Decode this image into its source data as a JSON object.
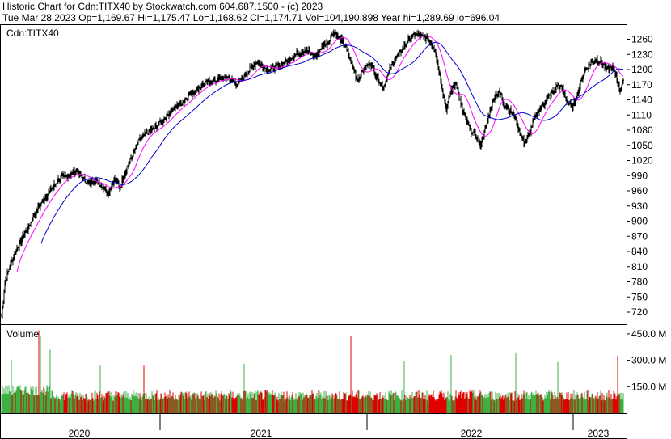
{
  "header": {
    "line1": "Historic Chart for Cdn:TITX40 by Stockwatch.com 604.687.1500 - (c) 2023",
    "line2": "Tue Mar 28 2023   Op=1,169.67   Hi=1,175.47   Lo=1,168.62   Cl=1,174.71   Vol=104,190,898   Year hi=1,289.69   lo=696.04"
  },
  "chart_data": [
    {
      "type": "line",
      "subtype": "ohlc",
      "title": "Cdn:TITX40",
      "x_labels": [
        "2020",
        "2021",
        "2022",
        "2023"
      ],
      "y_ticks": [
        720,
        750,
        780,
        810,
        840,
        870,
        900,
        930,
        960,
        990,
        1020,
        1050,
        1080,
        1110,
        1140,
        1170,
        1200,
        1230,
        1260
      ],
      "ylim": [
        696,
        1288
      ],
      "grid": false,
      "anchors": [
        [
          0,
          710
        ],
        [
          4,
          780
        ],
        [
          12,
          820
        ],
        [
          20,
          850
        ],
        [
          30,
          880
        ],
        [
          40,
          910
        ],
        [
          50,
          940
        ],
        [
          60,
          960
        ],
        [
          72,
          985
        ],
        [
          84,
          990
        ],
        [
          92,
          1000
        ],
        [
          100,
          985
        ],
        [
          108,
          975
        ],
        [
          116,
          980
        ],
        [
          124,
          970
        ],
        [
          132,
          955
        ],
        [
          140,
          985
        ],
        [
          146,
          965
        ],
        [
          152,
          995
        ],
        [
          160,
          1025
        ],
        [
          170,
          1060
        ],
        [
          180,
          1075
        ],
        [
          190,
          1085
        ],
        [
          200,
          1100
        ],
        [
          210,
          1120
        ],
        [
          220,
          1130
        ],
        [
          232,
          1150
        ],
        [
          244,
          1165
        ],
        [
          256,
          1175
        ],
        [
          268,
          1180
        ],
        [
          280,
          1185
        ],
        [
          292,
          1170
        ],
        [
          304,
          1195
        ],
        [
          316,
          1215
        ],
        [
          328,
          1200
        ],
        [
          340,
          1205
        ],
        [
          352,
          1215
        ],
        [
          364,
          1230
        ],
        [
          376,
          1240
        ],
        [
          388,
          1225
        ],
        [
          396,
          1245
        ],
        [
          404,
          1255
        ],
        [
          410,
          1275
        ],
        [
          416,
          1265
        ],
        [
          424,
          1250
        ],
        [
          432,
          1215
        ],
        [
          440,
          1180
        ],
        [
          448,
          1200
        ],
        [
          456,
          1215
        ],
        [
          464,
          1185
        ],
        [
          472,
          1165
        ],
        [
          480,
          1200
        ],
        [
          488,
          1225
        ],
        [
          496,
          1240
        ],
        [
          504,
          1260
        ],
        [
          512,
          1270
        ],
        [
          520,
          1265
        ],
        [
          528,
          1260
        ],
        [
          536,
          1240
        ],
        [
          544,
          1170
        ],
        [
          550,
          1120
        ],
        [
          556,
          1160
        ],
        [
          562,
          1175
        ],
        [
          568,
          1130
        ],
        [
          574,
          1100
        ],
        [
          580,
          1080
        ],
        [
          586,
          1070
        ],
        [
          592,
          1050
        ],
        [
          598,
          1080
        ],
        [
          604,
          1120
        ],
        [
          610,
          1150
        ],
        [
          616,
          1155
        ],
        [
          622,
          1130
        ],
        [
          628,
          1120
        ],
        [
          634,
          1110
        ],
        [
          640,
          1080
        ],
        [
          646,
          1055
        ],
        [
          652,
          1070
        ],
        [
          658,
          1100
        ],
        [
          664,
          1120
        ],
        [
          670,
          1130
        ],
        [
          676,
          1145
        ],
        [
          682,
          1155
        ],
        [
          688,
          1170
        ],
        [
          694,
          1160
        ],
        [
          700,
          1135
        ],
        [
          706,
          1125
        ],
        [
          712,
          1150
        ],
        [
          718,
          1185
        ],
        [
          724,
          1205
        ],
        [
          730,
          1215
        ],
        [
          736,
          1220
        ],
        [
          742,
          1215
        ],
        [
          748,
          1200
        ],
        [
          754,
          1205
        ],
        [
          760,
          1190
        ],
        [
          764,
          1160
        ],
        [
          768,
          1175
        ]
      ],
      "moving_averages": [
        {
          "period": 20,
          "color": "#ff00ff"
        },
        {
          "period": 50,
          "color": "#0000cc"
        }
      ]
    },
    {
      "type": "bar",
      "title": "Volume",
      "y_ticks": [
        150,
        300,
        450
      ],
      "y_tick_labels": [
        "150.0 M",
        "300.0 M",
        "450.0 M"
      ],
      "ylim": [
        0,
        500
      ],
      "colors": {
        "up": "#3cb043",
        "down": "#e00000"
      },
      "spikes": [
        [
          12,
          305
        ],
        [
          46,
          470
        ],
        [
          48,
          440
        ],
        [
          60,
          360
        ],
        [
          122,
          270
        ],
        [
          176,
          270
        ],
        [
          300,
          280
        ],
        [
          432,
          440
        ],
        [
          498,
          295
        ],
        [
          556,
          330
        ],
        [
          636,
          340
        ],
        [
          688,
          290
        ],
        [
          762,
          325
        ]
      ]
    }
  ]
}
